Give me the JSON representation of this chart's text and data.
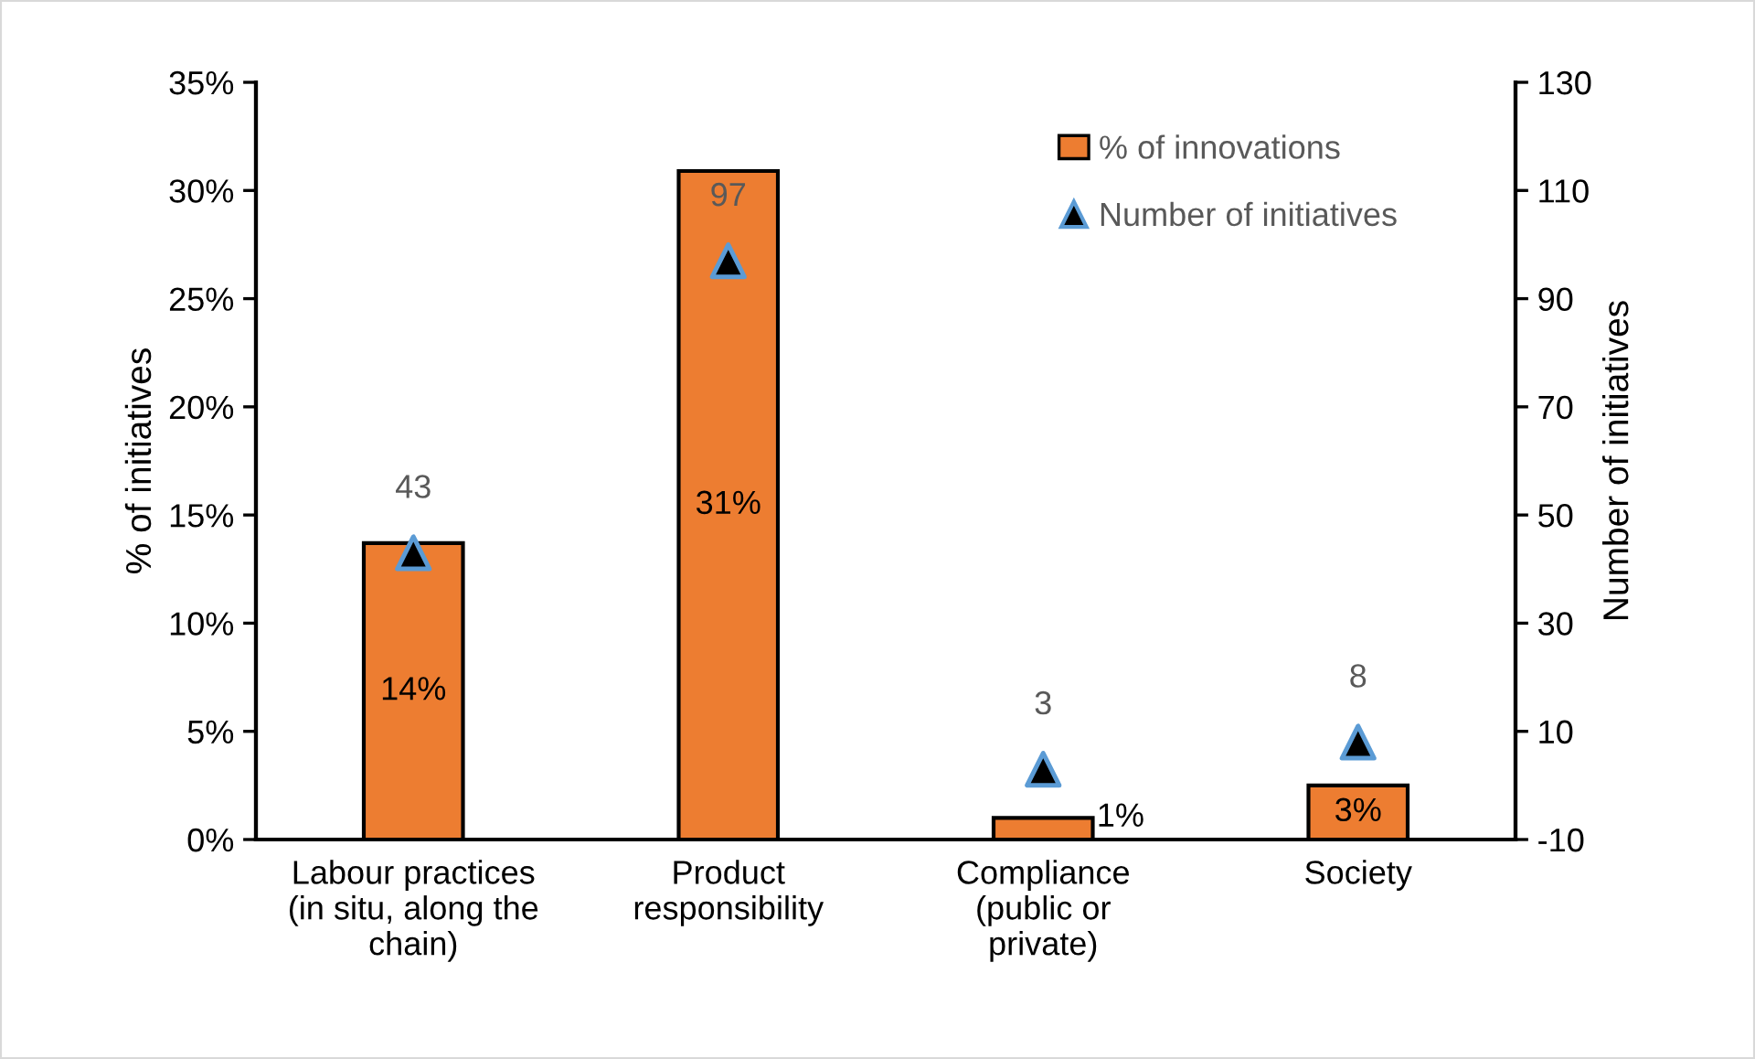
{
  "chart_data": {
    "type": "bar",
    "categories": [
      "Labour practices\n(in situ, along the\nchain)",
      "Product\nresponsibility",
      "Compliance\n(public or\nprivate)",
      "Society"
    ],
    "ylabel": "% of initiatives",
    "y2label": "Number of initiatives",
    "ylim": [
      0,
      35
    ],
    "yticks": [
      {
        "value": 0,
        "label": "0%"
      },
      {
        "value": 5,
        "label": "5%"
      },
      {
        "value": 10,
        "label": "10%"
      },
      {
        "value": 15,
        "label": "15%"
      },
      {
        "value": 20,
        "label": "20%"
      },
      {
        "value": 25,
        "label": "25%"
      },
      {
        "value": 30,
        "label": "30%"
      },
      {
        "value": 35,
        "label": "35%"
      }
    ],
    "y2lim": [
      -10,
      130
    ],
    "y2ticks": [
      -10,
      10,
      30,
      50,
      70,
      90,
      110,
      130
    ],
    "legend": "top right",
    "series": [
      {
        "name": "% of innovations",
        "color": "#ed7d31",
        "values": [
          13.7,
          30.9,
          1.0,
          2.5
        ],
        "value_labels": [
          "14%",
          "31%",
          "1%",
          "3%"
        ]
      },
      {
        "name": "Number of initiatives",
        "type": "scatter",
        "axis": "y2",
        "marker": "triangle",
        "color": "#000000",
        "values": [
          43,
          97,
          3,
          8
        ],
        "value_labels": [
          "43",
          "97",
          "3",
          "8"
        ]
      }
    ]
  }
}
